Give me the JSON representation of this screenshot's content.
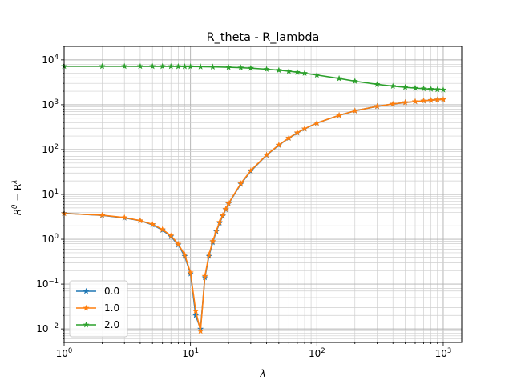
{
  "chart_data": {
    "type": "line",
    "title": "R_theta - R_lambda",
    "xlabel": "λ",
    "ylabel": "R^θ − R^λ",
    "xscale": "log",
    "yscale": "log",
    "xlim": [
      1,
      1400
    ],
    "ylim": [
      0.005,
      20000
    ],
    "grid": "both-major-and-minor",
    "marker": "star",
    "legend_position": "lower-left",
    "x_ticks": [
      {
        "value": 1,
        "base": "10",
        "exp": "0"
      },
      {
        "value": 10,
        "base": "10",
        "exp": "1"
      },
      {
        "value": 100,
        "base": "10",
        "exp": "2"
      },
      {
        "value": 1000,
        "base": "10",
        "exp": "3"
      }
    ],
    "y_ticks": [
      {
        "value": 0.01,
        "base": "10",
        "exp": "−2"
      },
      {
        "value": 0.1,
        "base": "10",
        "exp": "−1"
      },
      {
        "value": 1,
        "base": "10",
        "exp": "0"
      },
      {
        "value": 10,
        "base": "10",
        "exp": "1"
      },
      {
        "value": 100,
        "base": "10",
        "exp": "2"
      },
      {
        "value": 1000,
        "base": "10",
        "exp": "3"
      },
      {
        "value": 10000,
        "base": "10",
        "exp": "4"
      }
    ],
    "series": [
      {
        "name": "0.0",
        "color": "#1f77b4",
        "x": [
          1,
          2,
          3,
          4,
          5,
          6,
          7,
          8,
          9,
          10,
          11,
          12,
          13,
          14,
          15,
          16,
          17,
          18,
          19,
          20,
          25,
          30,
          40,
          50,
          60,
          70,
          80,
          100,
          150,
          200,
          300,
          400,
          500,
          600,
          700,
          800,
          900,
          1000
        ],
        "y": [
          3.8,
          3.4,
          3.0,
          2.6,
          2.1,
          1.6,
          1.15,
          0.75,
          0.42,
          0.17,
          0.02,
          0.01,
          0.14,
          0.42,
          0.85,
          1.5,
          2.3,
          3.3,
          4.6,
          6.2,
          17,
          33,
          75,
          125,
          180,
          235,
          290,
          390,
          580,
          730,
          920,
          1040,
          1120,
          1180,
          1220,
          1260,
          1290,
          1310
        ]
      },
      {
        "name": "1.0",
        "color": "#ff7f0e",
        "x": [
          1,
          2,
          3,
          4,
          5,
          6,
          7,
          8,
          9,
          10,
          11,
          12,
          13,
          14,
          15,
          16,
          17,
          18,
          19,
          20,
          25,
          30,
          40,
          50,
          60,
          70,
          80,
          100,
          150,
          200,
          300,
          400,
          500,
          600,
          700,
          800,
          900,
          1000
        ],
        "y": [
          3.75,
          3.45,
          3.05,
          2.6,
          2.15,
          1.65,
          1.2,
          0.78,
          0.45,
          0.18,
          0.025,
          0.009,
          0.15,
          0.45,
          0.9,
          1.55,
          2.4,
          3.4,
          4.7,
          6.3,
          17.5,
          34,
          76,
          127,
          182,
          238,
          292,
          392,
          582,
          732,
          922,
          1042,
          1122,
          1182,
          1222,
          1262,
          1292,
          1312
        ]
      },
      {
        "name": "2.0",
        "color": "#2ca02c",
        "x": [
          1,
          2,
          3,
          4,
          5,
          6,
          7,
          8,
          9,
          10,
          12,
          15,
          20,
          25,
          30,
          40,
          50,
          60,
          70,
          80,
          100,
          150,
          200,
          300,
          400,
          500,
          600,
          700,
          800,
          900,
          1000
        ],
        "y": [
          7200,
          7200,
          7200,
          7190,
          7180,
          7170,
          7160,
          7140,
          7120,
          7100,
          7050,
          6980,
          6850,
          6700,
          6550,
          6200,
          5900,
          5600,
          5300,
          5050,
          4600,
          3850,
          3350,
          2850,
          2600,
          2450,
          2350,
          2280,
          2230,
          2190,
          2150
        ]
      }
    ]
  }
}
